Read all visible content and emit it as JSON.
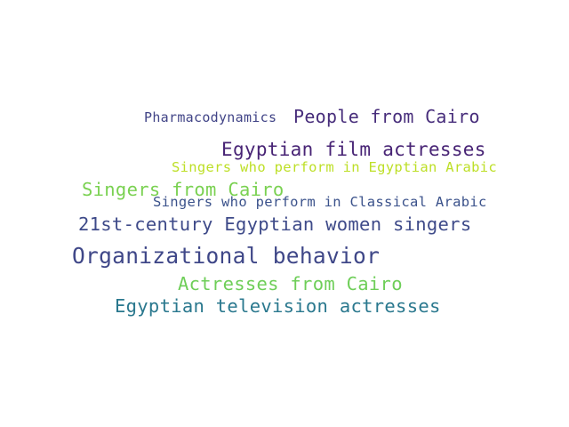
{
  "words": [
    {
      "text": "Pharmacodynamics",
      "color": "#414487"
    },
    {
      "text": "People from Cairo",
      "color": "#472d7b"
    },
    {
      "text": "Egyptian film actresses",
      "color": "#482475"
    },
    {
      "text": "Singers who perform in Egyptian Arabic",
      "color": "#bddf26"
    },
    {
      "text": "Singers from Cairo",
      "color": "#7ad151"
    },
    {
      "text": "Singers who perform in Classical Arabic",
      "color": "#3b528b"
    },
    {
      "text": "21st-century Egyptian women singers",
      "color": "#3e4a89"
    },
    {
      "text": "Organizational behavior",
      "color": "#3f4788"
    },
    {
      "text": "Actresses from Cairo",
      "color": "#6ece58"
    },
    {
      "text": "Egyptian television actresses",
      "color": "#2a788e"
    }
  ]
}
